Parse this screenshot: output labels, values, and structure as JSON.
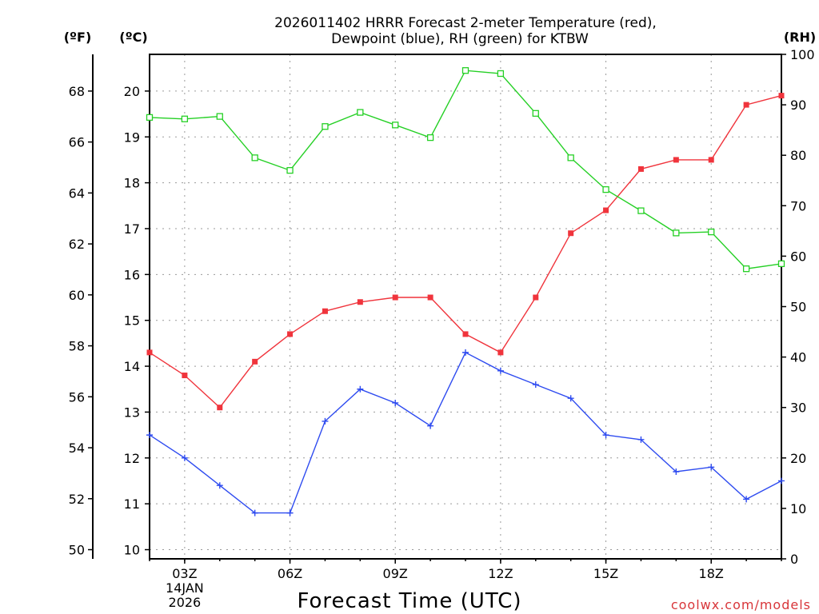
{
  "title_line1": "2026011402 HRRR Forecast 2-meter Temperature (red),",
  "title_line2": "Dewpoint (blue), RH (green) for KTBW",
  "unit_f": "(ºF)",
  "unit_c": "(ºC)",
  "unit_rh": "(RH)",
  "credit": "coolwx.com/models",
  "chart_data": {
    "type": "line",
    "title": "2026011402 HRRR Forecast 2-meter Temperature (red), Dewpoint (blue), RH (green) for KTBW",
    "xlabel": "Forecast Time (UTC)",
    "x_hours": [
      2,
      3,
      4,
      5,
      6,
      7,
      8,
      9,
      10,
      11,
      12,
      13,
      14,
      15,
      16,
      17,
      18,
      19,
      20
    ],
    "xlim": [
      2,
      20
    ],
    "x_ticks": [
      {
        "hour": 3,
        "label": "03Z",
        "sub1": "14JAN",
        "sub2": "2026"
      },
      {
        "hour": 6,
        "label": "06Z"
      },
      {
        "hour": 9,
        "label": "09Z"
      },
      {
        "hour": 12,
        "label": "12Z"
      },
      {
        "hour": 15,
        "label": "15Z"
      },
      {
        "hour": 18,
        "label": "18Z"
      }
    ],
    "left_axis_celsius": {
      "ylabel": "(ºC)",
      "ylim": [
        9.8,
        20.8
      ],
      "ticks": [
        10,
        11,
        12,
        13,
        14,
        15,
        16,
        17,
        18,
        19,
        20
      ]
    },
    "outer_axis_fahrenheit": {
      "ylabel": "(ºF)",
      "ylim": [
        49.64,
        69.44
      ],
      "ticks": [
        50,
        52,
        54,
        56,
        58,
        60,
        62,
        64,
        66,
        68
      ]
    },
    "right_axis_rh": {
      "ylabel": "(RH)",
      "ylim": [
        0,
        100
      ],
      "ticks": [
        0,
        10,
        20,
        30,
        40,
        50,
        60,
        70,
        80,
        90,
        100
      ]
    },
    "series": [
      {
        "name": "Temperature",
        "axis": "celsius",
        "color": "#f0343c",
        "marker": "filled-square",
        "values": [
          14.3,
          13.8,
          13.1,
          14.1,
          14.7,
          15.2,
          15.4,
          15.5,
          15.5,
          14.7,
          14.3,
          15.5,
          16.9,
          17.4,
          18.3,
          18.5,
          18.5,
          19.7,
          19.9
        ]
      },
      {
        "name": "Dewpoint",
        "axis": "celsius",
        "color": "#2e4bf0",
        "marker": "plus",
        "values": [
          12.5,
          12.0,
          11.4,
          10.8,
          10.8,
          12.8,
          13.5,
          13.2,
          12.7,
          14.3,
          13.9,
          13.6,
          13.3,
          12.5,
          12.4,
          11.7,
          11.8,
          11.1,
          11.5
        ]
      },
      {
        "name": "RH",
        "axis": "rh",
        "color": "#25d025",
        "marker": "open-square",
        "values": [
          87.5,
          87.2,
          87.7,
          79.5,
          77.0,
          85.7,
          88.5,
          86.0,
          83.5,
          96.8,
          96.2,
          88.3,
          79.5,
          73.2,
          69.0,
          64.6,
          64.8,
          57.5,
          58.5
        ]
      }
    ]
  }
}
